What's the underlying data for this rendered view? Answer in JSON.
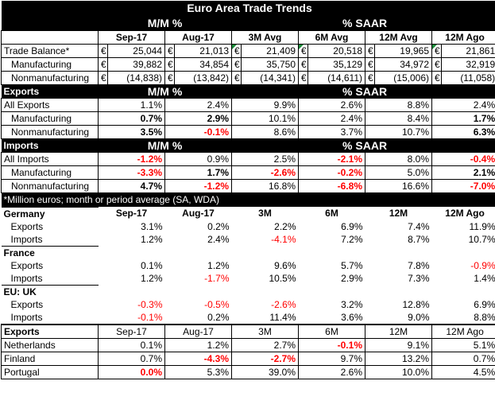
{
  "title": "Euro Area Trade Trends",
  "header": {
    "mm": "M/M %",
    "saar": "% SAAR",
    "cols": [
      "Sep-17",
      "Aug-17",
      "3M Avg",
      "6M Avg",
      "12M Avg",
      "12M Ago"
    ]
  },
  "trade": {
    "currency": "€",
    "rows": [
      {
        "label": "Trade Balance*",
        "values": [
          "25,044",
          "21,013",
          "21,409",
          "20,518",
          "19,965",
          "21,861"
        ]
      },
      {
        "label": "Manufacturing",
        "values": [
          "39,882",
          "34,854",
          "35,750",
          "35,129",
          "34,972",
          "32,919"
        ]
      },
      {
        "label": "Nonmanufacturing",
        "values": [
          "(14,838)",
          "(13,842)",
          "(14,341)",
          "(14,611)",
          "(15,006)",
          "(11,058)"
        ]
      }
    ]
  },
  "exports": {
    "band": "Exports",
    "mm": "M/M %",
    "saar": "% SAAR",
    "rows": [
      {
        "label": "All Exports",
        "values": [
          "1.1%",
          "2.4%",
          "9.9%",
          "2.6%",
          "8.8%",
          "2.4%"
        ]
      },
      {
        "label": "Manufacturing",
        "values": [
          "0.7%",
          "2.9%",
          "10.1%",
          "2.4%",
          "8.4%",
          "1.7%"
        ]
      },
      {
        "label": "Nonmanufacturing",
        "values": [
          "3.5%",
          "-0.1%",
          "8.6%",
          "3.7%",
          "10.7%",
          "6.3%"
        ]
      }
    ]
  },
  "imports": {
    "band": "Imports",
    "mm": "M/M %",
    "saar": "% SAAR",
    "rows": [
      {
        "label": "All Imports",
        "values": [
          "-1.2%",
          "0.9%",
          "2.5%",
          "-2.1%",
          "8.0%",
          "-0.4%"
        ]
      },
      {
        "label": "Manufacturing",
        "values": [
          "-3.3%",
          "1.7%",
          "-2.6%",
          "-0.2%",
          "5.0%",
          "2.1%"
        ]
      },
      {
        "label": "Nonmanufacturing",
        "values": [
          "4.7%",
          "-1.2%",
          "16.8%",
          "-6.8%",
          "16.6%",
          "-7.0%"
        ]
      }
    ]
  },
  "note": "*Million euros; month or period average (SA, WDA)",
  "country_header": {
    "cols": [
      "Sep-17",
      "Aug-17",
      "3M",
      "6M",
      "12M",
      "12M Ago"
    ]
  },
  "germany": {
    "name": "Germany",
    "rows": [
      {
        "label": "Exports",
        "values": [
          "3.1%",
          "0.2%",
          "2.2%",
          "6.9%",
          "7.4%",
          "11.9%"
        ]
      },
      {
        "label": "Imports",
        "values": [
          "1.2%",
          "2.4%",
          "-4.1%",
          "7.2%",
          "8.7%",
          "10.7%"
        ]
      }
    ]
  },
  "france": {
    "name": "France",
    "rows": [
      {
        "label": "Exports",
        "values": [
          "0.1%",
          "1.2%",
          "9.6%",
          "5.7%",
          "7.8%",
          "-0.9%"
        ]
      },
      {
        "label": "Imports",
        "values": [
          "1.2%",
          "-1.7%",
          "10.5%",
          "2.9%",
          "7.3%",
          "1.4%"
        ]
      }
    ]
  },
  "uk": {
    "name": "EU: UK",
    "rows": [
      {
        "label": "Exports",
        "values": [
          "-0.3%",
          "-0.5%",
          "-2.6%",
          "3.2%",
          "12.8%",
          "6.9%"
        ]
      },
      {
        "label": "Imports",
        "values": [
          "-0.1%",
          "0.2%",
          "11.4%",
          "3.6%",
          "9.0%",
          "8.8%"
        ]
      }
    ]
  },
  "exports_by_country": {
    "band": "Exports",
    "cols": [
      "Sep-17",
      "Aug-17",
      "3M",
      "6M",
      "12M",
      "12M Ago"
    ],
    "rows": [
      {
        "label": "Netherlands",
        "values": [
          "0.1%",
          "1.2%",
          "2.7%",
          "-0.1%",
          "9.1%",
          "5.1%"
        ]
      },
      {
        "label": "Finland",
        "values": [
          "0.7%",
          "-4.3%",
          "-2.7%",
          "9.7%",
          "13.2%",
          "0.7%"
        ]
      },
      {
        "label": "Portugal",
        "values": [
          "0.0%",
          "5.3%",
          "39.0%",
          "2.6%",
          "10.0%",
          "4.5%"
        ]
      }
    ]
  },
  "colors": {
    "negative": "#ff0000",
    "band": "#000000",
    "flag": "#1a8c3a"
  }
}
